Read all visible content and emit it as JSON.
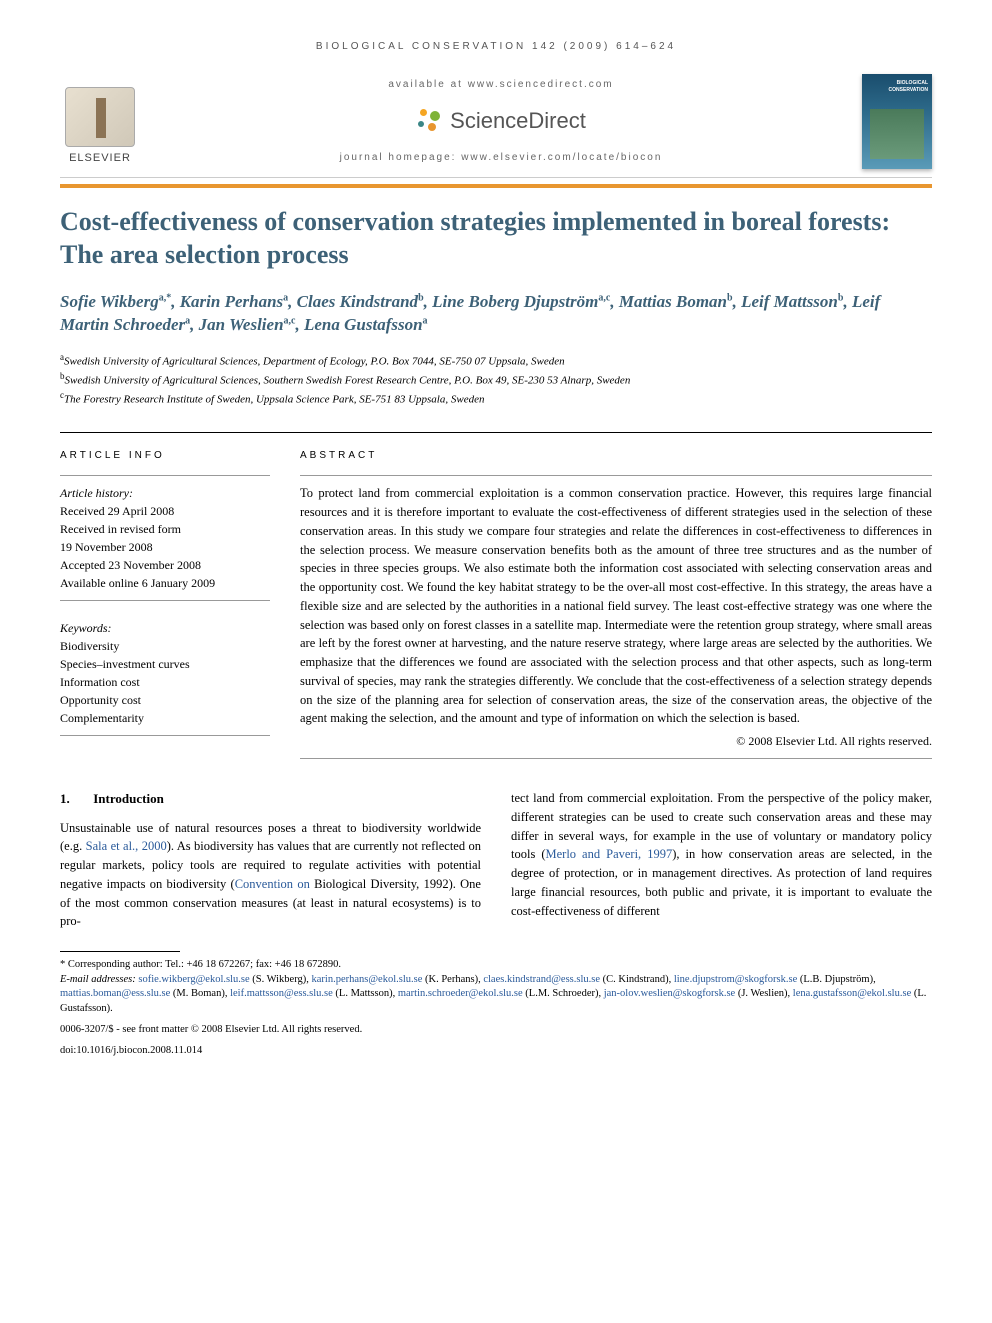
{
  "running_header": "BIOLOGICAL CONSERVATION 142 (2009) 614–624",
  "banner": {
    "elsevier": "ELSEVIER",
    "available_at": "available at www.sciencedirect.com",
    "sd_wordmark": "ScienceDirect",
    "homepage": "journal homepage: www.elsevier.com/locate/biocon",
    "cover_title": "BIOLOGICAL CONSERVATION",
    "sd_dot_colors": [
      "#f5a623",
      "#7eb338",
      "#3b8686",
      "#e8962f"
    ],
    "orange_rule_color": "#e8962f"
  },
  "title": "Cost-effectiveness of conservation strategies implemented in boreal forests: The area selection process",
  "authors_html": "Sofie Wikberg<sup>a,*</sup>, Karin Perhans<sup>a</sup>, Claes Kindstrand<sup>b</sup>, Line Boberg Djupström<sup>a,c</sup>, Mattias Boman<sup>b</sup>, Leif Mattsson<sup>b</sup>, Leif Martin Schroeder<sup>a</sup>, Jan Weslien<sup>a,c</sup>, Lena Gustafsson<sup>a</sup>",
  "affiliations": [
    {
      "sup": "a",
      "text": "Swedish University of Agricultural Sciences, Department of Ecology, P.O. Box 7044, SE-750 07 Uppsala, Sweden"
    },
    {
      "sup": "b",
      "text": "Swedish University of Agricultural Sciences, Southern Swedish Forest Research Centre, P.O. Box 49, SE-230 53 Alnarp, Sweden"
    },
    {
      "sup": "c",
      "text": "The Forestry Research Institute of Sweden, Uppsala Science Park, SE-751 83 Uppsala, Sweden"
    }
  ],
  "article_info": {
    "label": "ARTICLE INFO",
    "history_label": "Article history:",
    "history": [
      "Received 29 April 2008",
      "Received in revised form",
      "19 November 2008",
      "Accepted 23 November 2008",
      "Available online 6 January 2009"
    ],
    "keywords_label": "Keywords:",
    "keywords": [
      "Biodiversity",
      "Species–investment curves",
      "Information cost",
      "Opportunity cost",
      "Complementarity"
    ]
  },
  "abstract": {
    "label": "ABSTRACT",
    "text": "To protect land from commercial exploitation is a common conservation practice. However, this requires large financial resources and it is therefore important to evaluate the cost-effectiveness of different strategies used in the selection of these conservation areas. In this study we compare four strategies and relate the differences in cost-effectiveness to differences in the selection process. We measure conservation benefits both as the amount of three tree structures and as the number of species in three species groups. We also estimate both the information cost associated with selecting conservation areas and the opportunity cost. We found the key habitat strategy to be the over-all most cost-effective. In this strategy, the areas have a flexible size and are selected by the authorities in a national field survey. The least cost-effective strategy was one where the selection was based only on forest classes in a satellite map. Intermediate were the retention group strategy, where small areas are left by the forest owner at harvesting, and the nature reserve strategy, where large areas are selected by the authorities. We emphasize that the differences we found are associated with the selection process and that other aspects, such as long-term survival of species, may rank the strategies differently. We conclude that the cost-effectiveness of a selection strategy depends on the size of the planning area for selection of conservation areas, the size of the conservation areas, the objective of the agent making the selection, and the amount and type of information on which the selection is based.",
    "copyright": "© 2008 Elsevier Ltd. All rights reserved."
  },
  "intro": {
    "num": "1.",
    "heading": "Introduction",
    "col1": "Unsustainable use of natural resources poses a threat to biodiversity worldwide (e.g. Sala et al., 2000). As biodiversity has values that are currently not reflected on regular markets, policy tools are required to regulate activities with potential negative impacts on biodiversity (Convention on Biological Diversity, 1992). One of the most common conservation measures (at least in natural ecosystems) is to pro-",
    "col2": "tect land from commercial exploitation. From the perspective of the policy maker, different strategies can be used to create such conservation areas and these may differ in several ways, for example in the use of voluntary or mandatory policy tools (Merlo and Paveri, 1997), in how conservation areas are selected, in the degree of protection, or in management directives. As protection of land requires large financial resources, both public and private, it is important to evaluate the cost-effectiveness of different",
    "cite1": "Sala et al., 2000",
    "cite2": "Convention on",
    "cite3": "Merlo and Paveri, 1997"
  },
  "footnotes": {
    "corresponding": "* Corresponding author: Tel.: +46 18 672267; fax: +46 18 672890.",
    "email_label": "E-mail addresses:",
    "emails": [
      {
        "addr": "sofie.wikberg@ekol.slu.se",
        "name": "(S. Wikberg)"
      },
      {
        "addr": "karin.perhans@ekol.slu.se",
        "name": "(K. Perhans)"
      },
      {
        "addr": "claes.kindstrand@ess.slu.se",
        "name": "(C. Kindstrand)"
      },
      {
        "addr": "line.djupstrom@skogforsk.se",
        "name": "(L.B. Djupström)"
      },
      {
        "addr": "mattias.boman@ess.slu.se",
        "name": "(M. Boman)"
      },
      {
        "addr": "leif.mattsson@ess.slu.se",
        "name": "(L. Mattsson)"
      },
      {
        "addr": "martin.schroeder@ekol.slu.se",
        "name": "(L.M. Schroeder)"
      },
      {
        "addr": "jan-olov.weslien@skogforsk.se",
        "name": "(J. Weslien)"
      },
      {
        "addr": "lena.gustafsson@ekol.slu.se",
        "name": "(L. Gustafsson)"
      }
    ],
    "meta1": "0006-3207/$ - see front matter © 2008 Elsevier Ltd. All rights reserved.",
    "meta2": "doi:10.1016/j.biocon.2008.11.014"
  }
}
